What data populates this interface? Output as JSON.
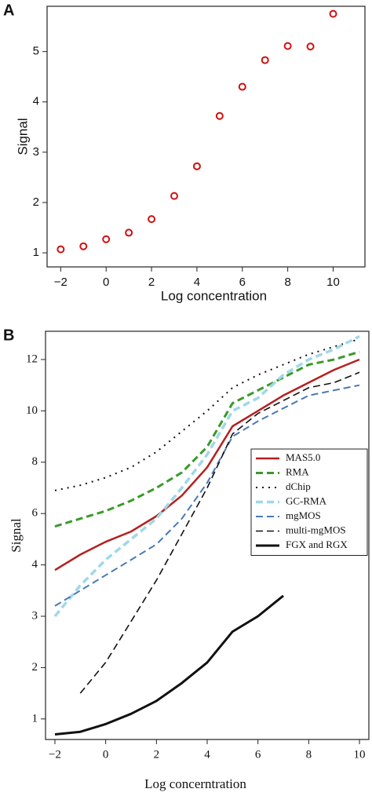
{
  "chart_data": [
    {
      "type": "scatter",
      "panel": "A",
      "xlabel": "Log concentration",
      "ylabel": "Signal",
      "x": [
        -2,
        -1,
        0,
        1,
        2,
        3,
        4,
        5,
        6,
        7,
        8,
        9,
        10
      ],
      "values": [
        1.07,
        1.13,
        1.27,
        1.4,
        1.67,
        2.13,
        2.72,
        3.72,
        4.3,
        4.83,
        5.11,
        5.1,
        5.75
      ],
      "color": "#d01010",
      "xlim": [
        -2.6,
        11.4
      ],
      "ylim": [
        0.72,
        5.9
      ],
      "xticks": [
        {
          "value": -2,
          "label": "−2"
        },
        0,
        2,
        4,
        6,
        8,
        10
      ],
      "yticks": [
        1,
        2,
        3,
        4,
        5
      ]
    },
    {
      "type": "line",
      "panel": "B",
      "xlabel": "Log concerntration",
      "ylabel": "Signal",
      "x": [
        -2,
        -1,
        0,
        1,
        2,
        3,
        4,
        5,
        6,
        7,
        8,
        9,
        10
      ],
      "series": [
        {
          "name": "MAS5.0",
          "color": "#b52020",
          "style": "solid",
          "width": 2.5,
          "values": [
            3.9,
            4.4,
            4.9,
            5.3,
            5.9,
            6.7,
            7.8,
            9.4,
            10.0,
            10.6,
            11.1,
            11.6,
            12.0
          ]
        },
        {
          "name": "RMA",
          "color": "#3a9a2a",
          "style": "dashed",
          "width": 3,
          "values": [
            5.5,
            5.8,
            6.1,
            6.5,
            7.0,
            7.6,
            8.6,
            10.3,
            10.8,
            11.3,
            11.8,
            12.0,
            12.3
          ]
        },
        {
          "name": "dChip",
          "color": "#111111",
          "style": "dotted",
          "width": 2,
          "values": [
            6.9,
            7.1,
            7.4,
            7.8,
            8.4,
            9.2,
            10.0,
            10.9,
            11.4,
            11.8,
            12.2,
            12.5,
            12.8
          ]
        },
        {
          "name": "GC-RMA",
          "color": "#9fd8e8",
          "style": "dashed",
          "width": 3.5,
          "values": [
            3.0,
            3.6,
            4.2,
            5.0,
            5.8,
            7.0,
            8.3,
            10.0,
            10.5,
            11.4,
            12.0,
            12.4,
            12.9
          ]
        },
        {
          "name": "mgMOS",
          "color": "#4a78b4",
          "style": "dashed",
          "width": 2,
          "values": [
            3.2,
            3.5,
            3.8,
            4.2,
            4.8,
            5.8,
            7.2,
            9.0,
            9.6,
            10.1,
            10.6,
            10.8,
            11.0
          ]
        },
        {
          "name": "multi-mgMOS",
          "color": "#111111",
          "style": "dashed",
          "width": 1.6,
          "values": [
            null,
            1.5,
            2.1,
            2.9,
            3.7,
            5.2,
            7.0,
            9.1,
            9.9,
            10.4,
            10.9,
            11.1,
            11.5
          ]
        },
        {
          "name": "FGX and RGX",
          "color": "#111111",
          "style": "solid",
          "width": 3,
          "values": [
            0.7,
            0.75,
            0.9,
            1.1,
            1.35,
            1.7,
            2.1,
            2.7,
            3.0,
            3.4,
            null,
            null,
            null
          ]
        }
      ],
      "yscale": "tick-spaced",
      "xlim": [
        -2.37,
        10.37
      ],
      "ylim": [
        0.6,
        13.1
      ],
      "xticks": [
        {
          "value": -2,
          "label": "−2"
        },
        0,
        2,
        4,
        6,
        8,
        10
      ],
      "yticks": [
        1,
        2,
        3,
        4,
        6,
        8,
        10,
        12
      ],
      "legend": "right"
    }
  ]
}
